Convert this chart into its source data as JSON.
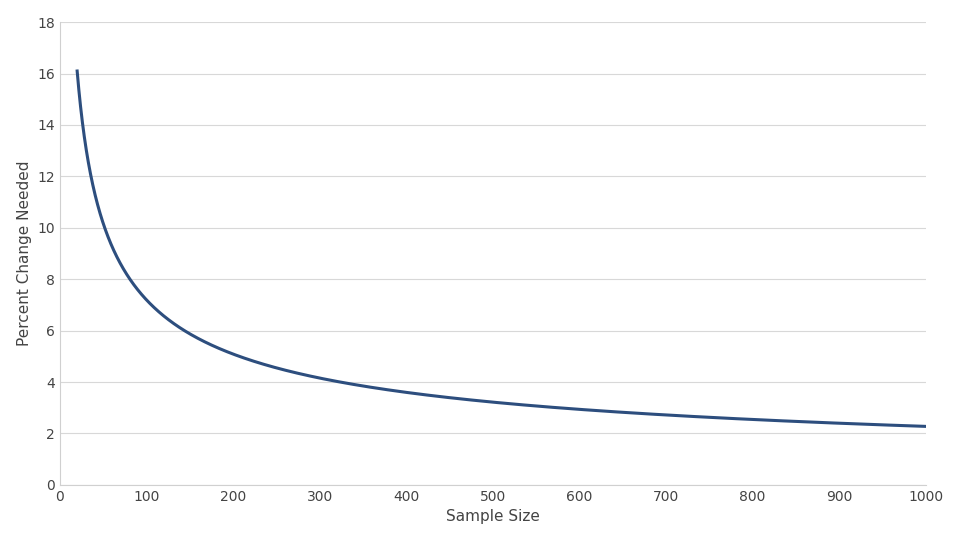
{
  "xlabel": "Sample Size",
  "ylabel": "Percent Change Needed",
  "x_start": 20,
  "x_end": 1000,
  "xlim": [
    0,
    1000
  ],
  "ylim": [
    0,
    18
  ],
  "yticks": [
    0,
    2,
    4,
    6,
    8,
    10,
    12,
    14,
    16,
    18
  ],
  "xticks": [
    0,
    100,
    200,
    300,
    400,
    500,
    600,
    700,
    800,
    900,
    1000
  ],
  "line_color": "#2d4e7e",
  "line_width": 2.2,
  "bg_color": "#ffffff",
  "grid_color": "#d8d8d8",
  "axes_color": "#d0d0d0",
  "label_fontsize": 11,
  "tick_fontsize": 10,
  "a": 72.0,
  "b": 0.5
}
